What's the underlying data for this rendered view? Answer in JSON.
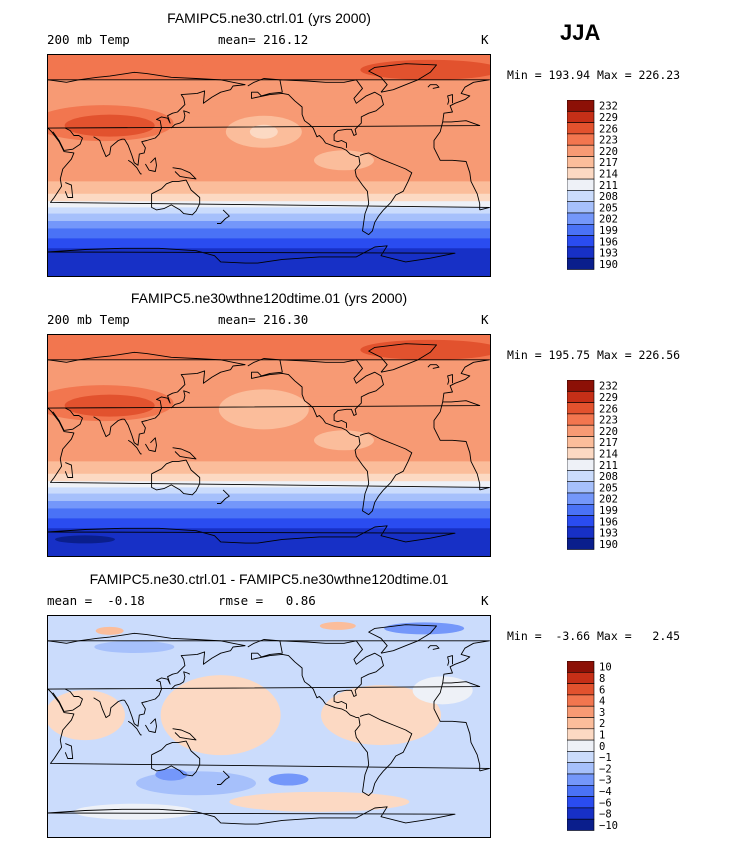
{
  "season": "JJA",
  "shared_colors": [
    "#0a1e8c",
    "#1730c6",
    "#2a4cf0",
    "#4a72f6",
    "#7497fa",
    "#a6c0fb",
    "#cbdcfc",
    "#eef1f7",
    "#fcd9c3",
    "#fbbd9b",
    "#f79a74",
    "#f2764f",
    "#e2522e",
    "#c62f17",
    "#8c1006"
  ],
  "panels": [
    {
      "title": "FAMIPC5.ne30.ctrl.01 (yrs 2000)",
      "left_label": "200 mb Temp",
      "mid_label": "mean= 216.12",
      "right_label": "K",
      "minmax": "Min = 193.94 Max = 226.23",
      "levels": [
        "232",
        "229",
        "226",
        "223",
        "220",
        "217",
        "214",
        "211",
        "208",
        "205",
        "202",
        "199",
        "196",
        "193",
        "190"
      ],
      "variant": "abs"
    },
    {
      "title": "FAMIPC5.ne30wthne120dtime.01 (yrs 2000)",
      "left_label": "200 mb Temp",
      "mid_label": "mean= 216.30",
      "right_label": "K",
      "minmax": "Min = 195.75 Max = 226.56",
      "levels": [
        "232",
        "229",
        "226",
        "223",
        "220",
        "217",
        "214",
        "211",
        "208",
        "205",
        "202",
        "199",
        "196",
        "193",
        "190"
      ],
      "variant": "abs2"
    },
    {
      "title": "FAMIPC5.ne30.ctrl.01 - FAMIPC5.ne30wthne120dtime.01",
      "left_label": "mean =  -0.18",
      "mid_label": "rmse =   0.86",
      "right_label": "K",
      "minmax": "Min =  -3.66 Max =   2.45",
      "levels": [
        "10",
        "8",
        "6",
        "4",
        "3",
        "2",
        "1",
        "0",
        "−1",
        "−2",
        "−3",
        "−4",
        "−6",
        "−8",
        "−10"
      ],
      "variant": "diff"
    }
  ]
}
